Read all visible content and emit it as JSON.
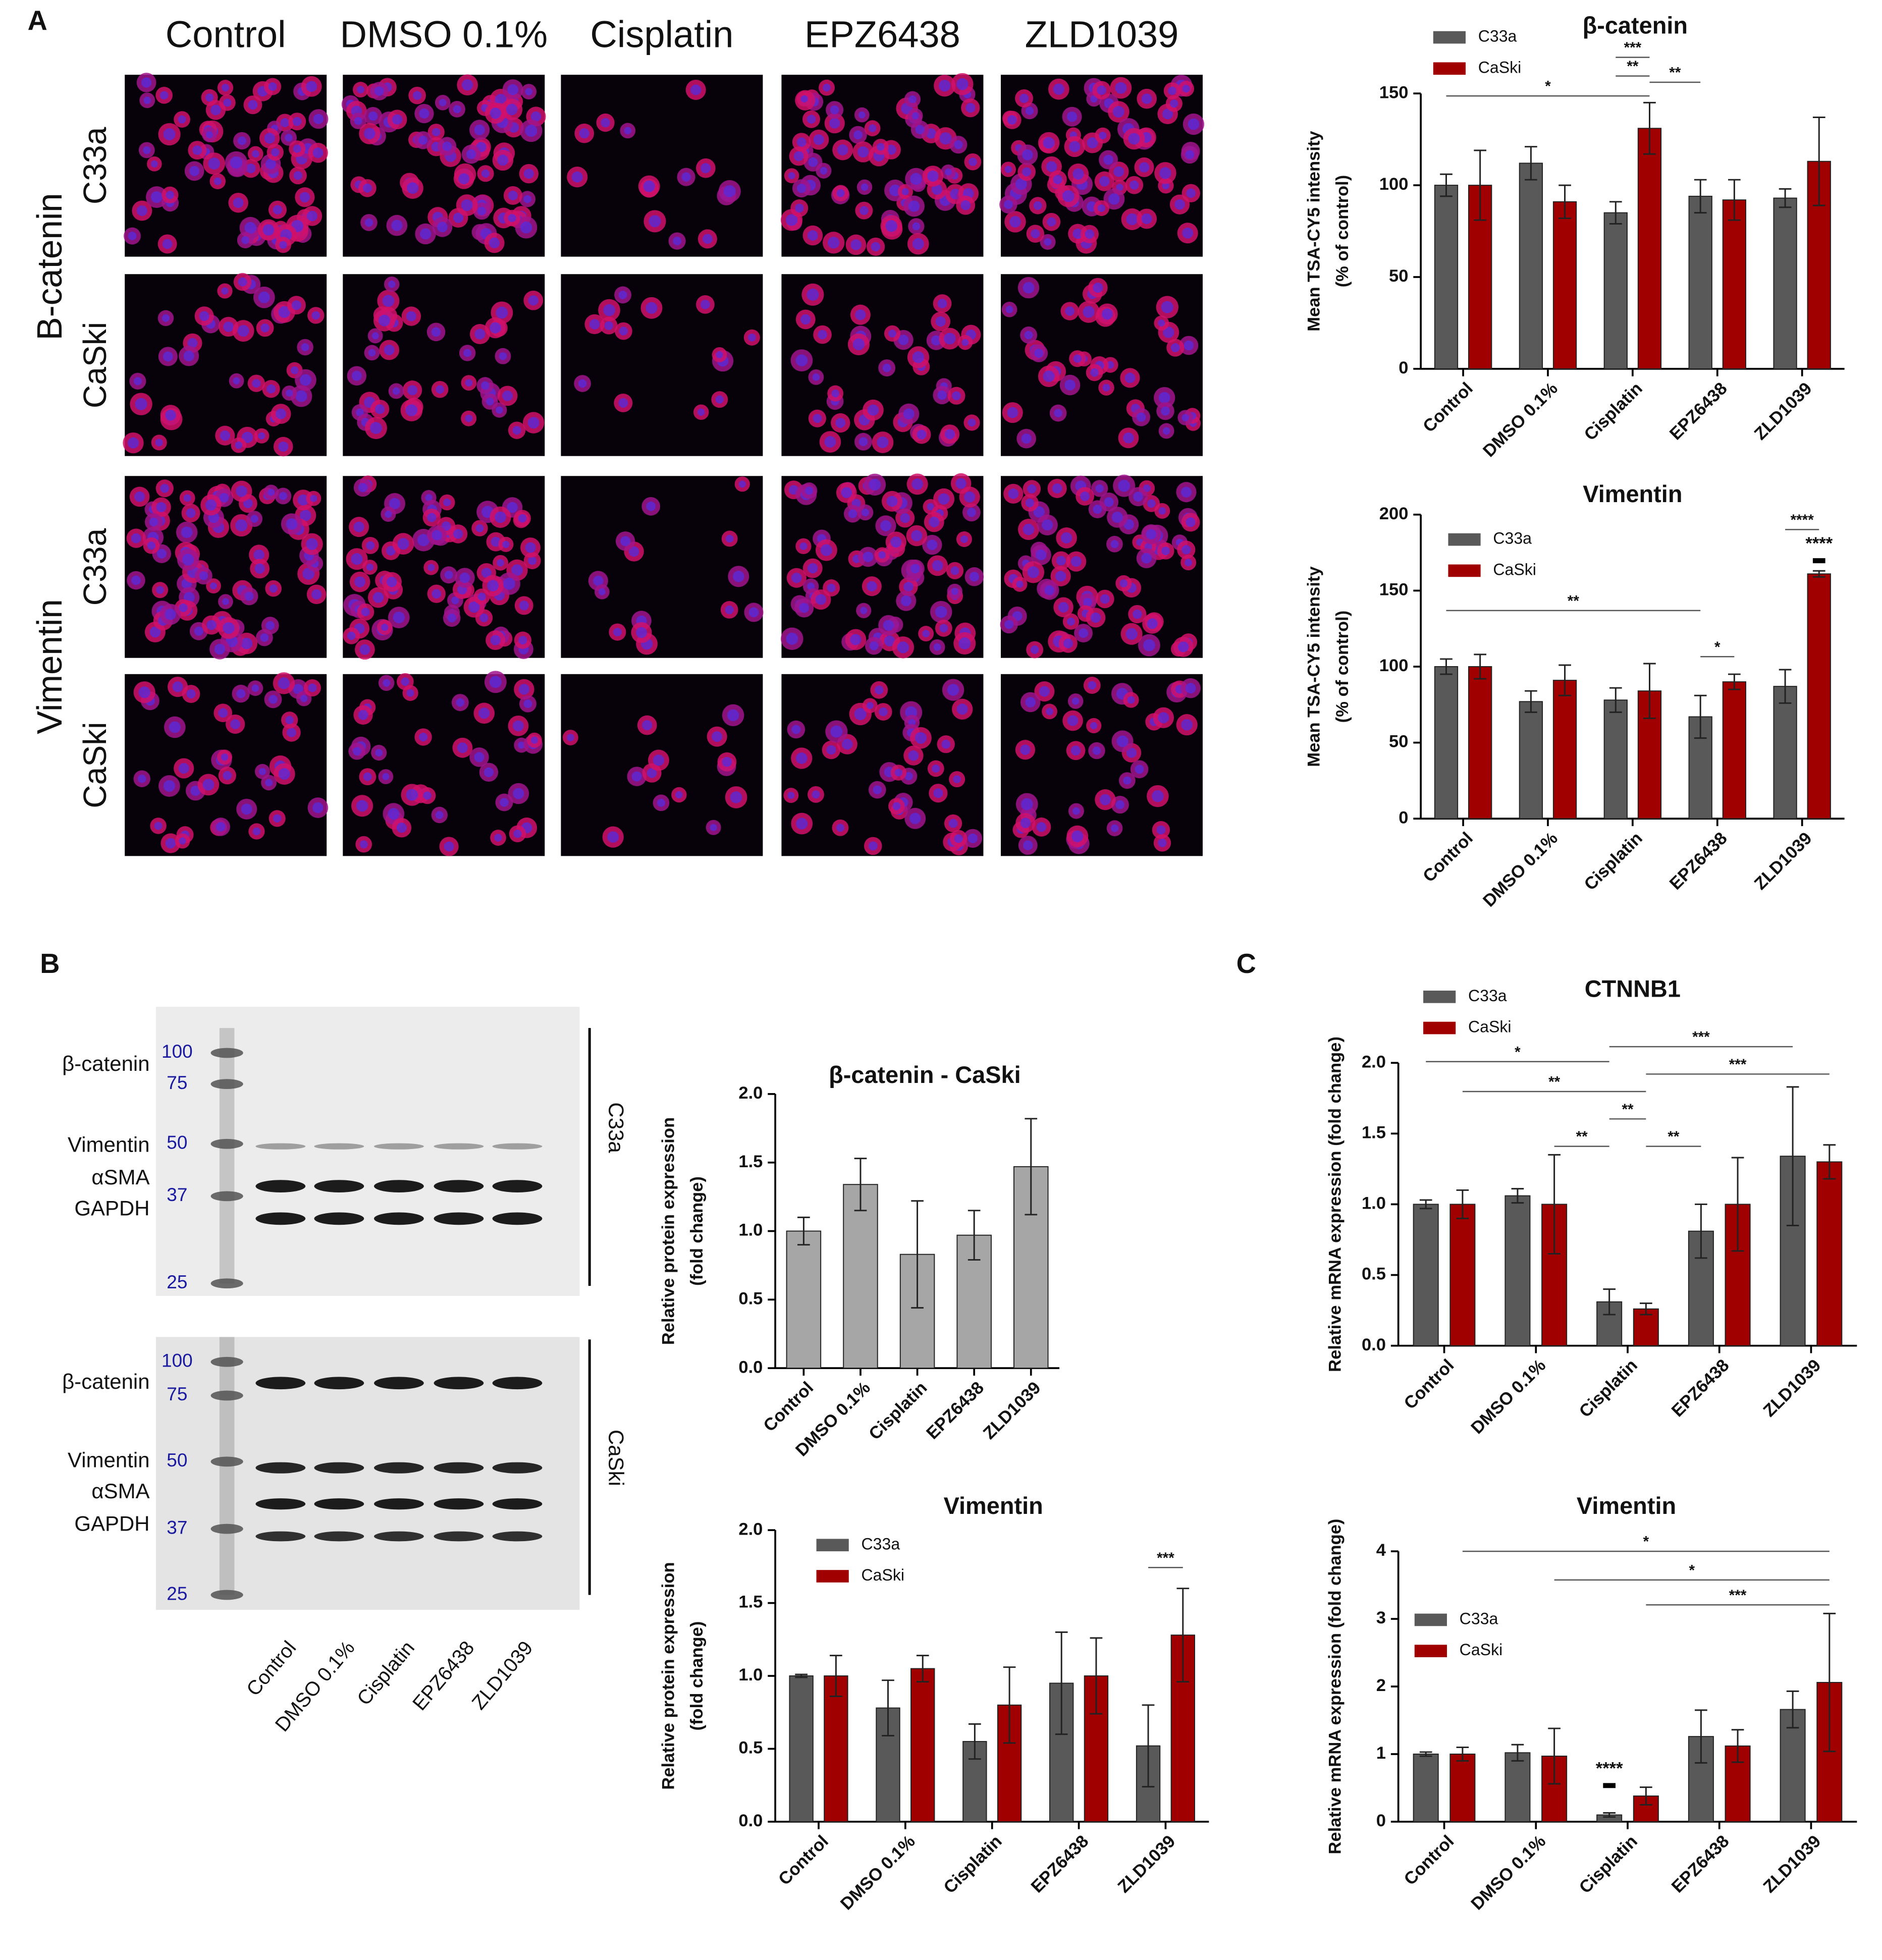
{
  "panel_labels": [
    "A",
    "B",
    "C"
  ],
  "microscopy": {
    "columns": [
      "Control",
      "DMSO 0.1%",
      "Cisplatin",
      "EPZ6438",
      "ZLD1039"
    ],
    "groups": [
      "B-catenin",
      "Vimentin"
    ],
    "rows": [
      "C33a",
      "CaSki",
      "C33a",
      "CaSki"
    ]
  },
  "western_blot": {
    "blots": [
      {
        "cell_line": "C33a",
        "ladder": [
          100,
          75,
          50,
          37,
          25
        ],
        "bands": [
          "β-catenin",
          "Vimentin",
          "αSMA",
          "GAPDH"
        ]
      },
      {
        "cell_line": "CaSki",
        "ladder": [
          100,
          75,
          50,
          37,
          25
        ],
        "bands": [
          "β-catenin",
          "Vimentin",
          "αSMA",
          "GAPDH"
        ]
      }
    ],
    "lanes": [
      "Control",
      "DMSO 0.1%",
      "Cisplatin",
      "EPZ6438",
      "ZLD1039"
    ]
  },
  "chart_data": [
    {
      "type": "bar",
      "title": "β-catenin",
      "ylabel": [
        "Mean TSA-CY5 intensity",
        "(% of control)"
      ],
      "categories": [
        "Control",
        "DMSO 0.1%",
        "Cisplatin",
        "EPZ6438",
        "ZLD1039"
      ],
      "ylim": [
        0,
        150
      ],
      "yticks": [
        0,
        50,
        100,
        150
      ],
      "series": [
        {
          "name": "C33a",
          "color": "#595959",
          "values": [
            100,
            112,
            85,
            94,
            93
          ],
          "errors": [
            6,
            9,
            6,
            9,
            5
          ]
        },
        {
          "name": "CaSki",
          "color": "#a00000",
          "values": [
            100,
            91,
            131,
            92,
            113
          ],
          "errors": [
            19,
            9,
            14,
            11,
            24
          ]
        }
      ],
      "annotations": [
        "*",
        "**",
        "***",
        "**"
      ]
    },
    {
      "type": "bar",
      "title": "Vimentin",
      "ylabel": [
        "Mean TSA-CY5 intensity",
        "(% of control)"
      ],
      "categories": [
        "Control",
        "DMSO 0.1%",
        "Cisplatin",
        "EPZ6438",
        "ZLD1039"
      ],
      "ylim": [
        0,
        200
      ],
      "yticks": [
        0,
        50,
        100,
        150,
        200
      ],
      "series": [
        {
          "name": "C33a",
          "color": "#595959",
          "values": [
            100,
            77,
            78,
            67,
            87
          ],
          "errors": [
            5,
            7,
            8,
            14,
            11
          ]
        },
        {
          "name": "CaSki",
          "color": "#a00000",
          "values": [
            100,
            91,
            84,
            90,
            161
          ],
          "errors": [
            8,
            10,
            18,
            5,
            2
          ]
        }
      ],
      "annotations": [
        "**",
        "*",
        "****",
        "****"
      ]
    },
    {
      "type": "bar",
      "title": "β-catenin - CaSki",
      "ylabel": [
        "Relative protein expression",
        "(fold change)"
      ],
      "categories": [
        "Control",
        "DMSO 0.1%",
        "Cisplatin",
        "EPZ6438",
        "ZLD1039"
      ],
      "ylim": [
        0,
        2
      ],
      "yticks": [
        {
          "value": 0,
          "label": "0.0"
        },
        {
          "value": 0.5,
          "label": "0.5"
        },
        {
          "value": 1,
          "label": "1.0"
        },
        {
          "value": 1.5,
          "label": "1.5"
        },
        {
          "value": 2,
          "label": "2.0"
        }
      ],
      "color": "#a6a6a6",
      "values": [
        1.0,
        1.34,
        0.83,
        0.97,
        1.47
      ],
      "errors": [
        0.1,
        0.19,
        0.39,
        0.18,
        0.35
      ]
    },
    {
      "type": "bar",
      "title": "Vimentin",
      "ylabel": [
        "Relative protein expression",
        "(fold change)"
      ],
      "categories": [
        "Control",
        "DMSO 0.1%",
        "Cisplatin",
        "EPZ6438",
        "ZLD1039"
      ],
      "ylim": [
        0,
        2
      ],
      "yticks": [
        {
          "value": 0,
          "label": "0.0"
        },
        {
          "value": 0.5,
          "label": "0.5"
        },
        {
          "value": 1,
          "label": "1.0"
        },
        {
          "value": 1.5,
          "label": "1.5"
        },
        {
          "value": 2,
          "label": "2.0"
        }
      ],
      "series": [
        {
          "name": "C33a",
          "color": "#595959",
          "values": [
            1.0,
            0.78,
            0.55,
            0.95,
            0.52
          ],
          "errors": [
            0.01,
            0.19,
            0.12,
            0.35,
            0.28
          ]
        },
        {
          "name": "CaSki",
          "color": "#a00000",
          "values": [
            1.0,
            1.05,
            0.8,
            1.0,
            1.28
          ],
          "errors": [
            0.14,
            0.09,
            0.26,
            0.26,
            0.32
          ]
        }
      ],
      "annotations": [
        "***"
      ]
    },
    {
      "type": "bar",
      "title": "CTNNB1",
      "ylabel": [
        "Relative mRNA expression (fold change)"
      ],
      "categories": [
        "Control",
        "DMSO 0.1%",
        "Cisplatin",
        "EPZ6438",
        "ZLD1039"
      ],
      "ylim": [
        0,
        2
      ],
      "yticks": [
        {
          "value": 0,
          "label": "0.0"
        },
        {
          "value": 0.5,
          "label": "0.5"
        },
        {
          "value": 1,
          "label": "1.0"
        },
        {
          "value": 1.5,
          "label": "1.5"
        },
        {
          "value": 2,
          "label": "2.0"
        }
      ],
      "series": [
        {
          "name": "C33a",
          "color": "#595959",
          "values": [
            1.0,
            1.06,
            0.31,
            0.81,
            1.34
          ],
          "errors": [
            0.03,
            0.05,
            0.09,
            0.19,
            0.49
          ]
        },
        {
          "name": "CaSki",
          "color": "#a00000",
          "values": [
            1.0,
            1.0,
            0.26,
            1.0,
            1.3
          ],
          "errors": [
            0.1,
            0.35,
            0.04,
            0.33,
            0.12
          ]
        }
      ],
      "annotations": [
        "***",
        "*",
        "***",
        "**",
        "**",
        "**",
        "**"
      ]
    },
    {
      "type": "bar",
      "title": "Vimentin",
      "ylabel": [
        "Relative mRNA expression (fold change)"
      ],
      "categories": [
        "Control",
        "DMSO 0.1%",
        "Cisplatin",
        "EPZ6438",
        "ZLD1039"
      ],
      "ylim": [
        0,
        4
      ],
      "yticks": [
        0,
        1,
        2,
        3,
        4
      ],
      "series": [
        {
          "name": "C33a",
          "color": "#595959",
          "values": [
            1.0,
            1.02,
            0.1,
            1.26,
            1.66
          ],
          "errors": [
            0.03,
            0.12,
            0.03,
            0.39,
            0.27
          ]
        },
        {
          "name": "CaSki",
          "color": "#a00000",
          "values": [
            1.0,
            0.97,
            0.38,
            1.12,
            2.06
          ],
          "errors": [
            0.1,
            0.41,
            0.13,
            0.24,
            1.02
          ]
        }
      ],
      "annotations": [
        "*",
        "*",
        "***",
        "****"
      ]
    }
  ]
}
